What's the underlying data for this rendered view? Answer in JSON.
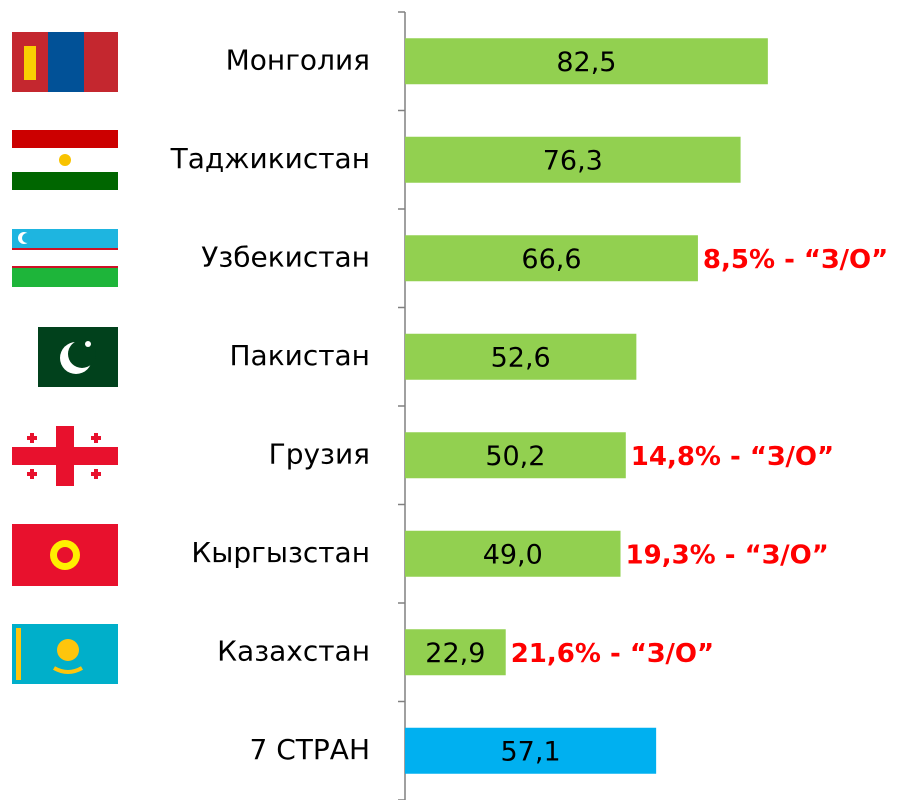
{
  "chart_data": {
    "type": "barh",
    "categories": [
      "Монголия",
      "Таджикистан",
      "Узбекистан",
      "Пакистан",
      "Грузия",
      "Кыргызстан",
      "Казахстан",
      "7 СТРАН"
    ],
    "values": [
      82.5,
      76.3,
      66.6,
      52.6,
      50.2,
      49.0,
      22.9,
      57.1
    ],
    "value_labels": [
      "82,5",
      "76,3",
      "66,6",
      "52,6",
      "50,2",
      "49,0",
      "22,9",
      "57,1"
    ],
    "colors": [
      "#92d050",
      "#92d050",
      "#92d050",
      "#92d050",
      "#92d050",
      "#92d050",
      "#92d050",
      "#00b0f0"
    ],
    "xlim": [
      0,
      118
    ],
    "annotations": [
      {
        "category": "Узбекистан",
        "text": "8,5% - “З/О”"
      },
      {
        "category": "Грузия",
        "text": "14,8% - “З/О”"
      },
      {
        "category": "Кыргызстан",
        "text": "19,3% - “З/О”"
      },
      {
        "category": "Казахстан",
        "text": "21,6% - “З/О”"
      }
    ]
  }
}
